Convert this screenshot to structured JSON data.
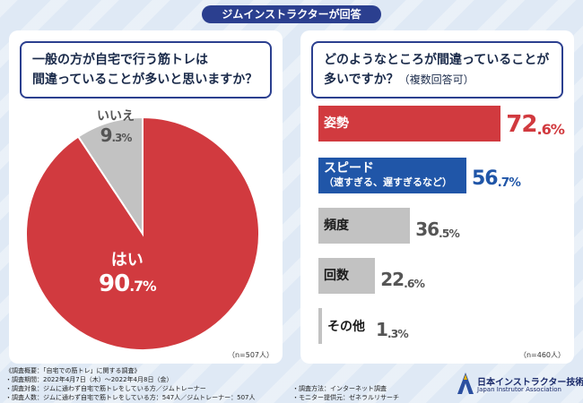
{
  "header": {
    "badge": "ジムインストラクターが回答"
  },
  "left_panel": {
    "question_line1": "一般の方が自宅で行う筋トレは",
    "question_line2": "間違っていることが多いと思いますか？",
    "n": "（n=507人）"
  },
  "right_panel": {
    "question_line1": "どのようなところが間違っていることが",
    "question_line2": "多いですか？",
    "question_note": "（複数回答可）",
    "n": "（n=460人）"
  },
  "chart_data": [
    {
      "type": "pie",
      "categories": [
        "はい",
        "いいえ"
      ],
      "values": [
        90.7,
        9.3
      ],
      "value_text": [
        {
          "int": "90",
          "dec": ".7%"
        },
        {
          "int": "9",
          "dec": ".3%"
        }
      ],
      "colors": [
        "#d13a3f",
        "#c2c2c2"
      ]
    },
    {
      "type": "bar",
      "orientation": "horizontal",
      "categories": [
        "姿勢",
        "スピード",
        "頻度",
        "回数",
        "その他"
      ],
      "category_sub": [
        "",
        "（速すぎる、遅すぎるなど）",
        "",
        "",
        ""
      ],
      "values": [
        72.6,
        56.7,
        36.5,
        22.6,
        1.3
      ],
      "value_text": [
        {
          "int": "72",
          "dec": ".6%"
        },
        {
          "int": "56",
          "dec": ".7%"
        },
        {
          "int": "36",
          "dec": ".5%"
        },
        {
          "int": "22",
          "dec": ".6%"
        },
        {
          "int": "1",
          "dec": ".3%"
        }
      ],
      "colors": [
        "#d13a3f",
        "#2056a8",
        "#c2c2c2",
        "#c2c2c2",
        "#c2c2c2"
      ]
    }
  ],
  "footer": {
    "line1": "《調査概要：「自宅での筋トレ」に関する調査》",
    "line2": "・調査期間：2022年4月7日（木）～2022年4月8日（金）",
    "line3": "・調査対象：ジムに通わず自宅で筋トレをしている方／ジムトレーナー",
    "line4": "・調査人数：ジムに通わず自宅で筋トレをしている方：547人／ジムトレーナー：507人",
    "method": "・調査方法：インターネット調査",
    "provider": "・モニター提供元：ゼネラルリサーチ"
  },
  "logo": {
    "name": "日本インストラクター技術協会",
    "en": "Japan Instrutor Association"
  }
}
